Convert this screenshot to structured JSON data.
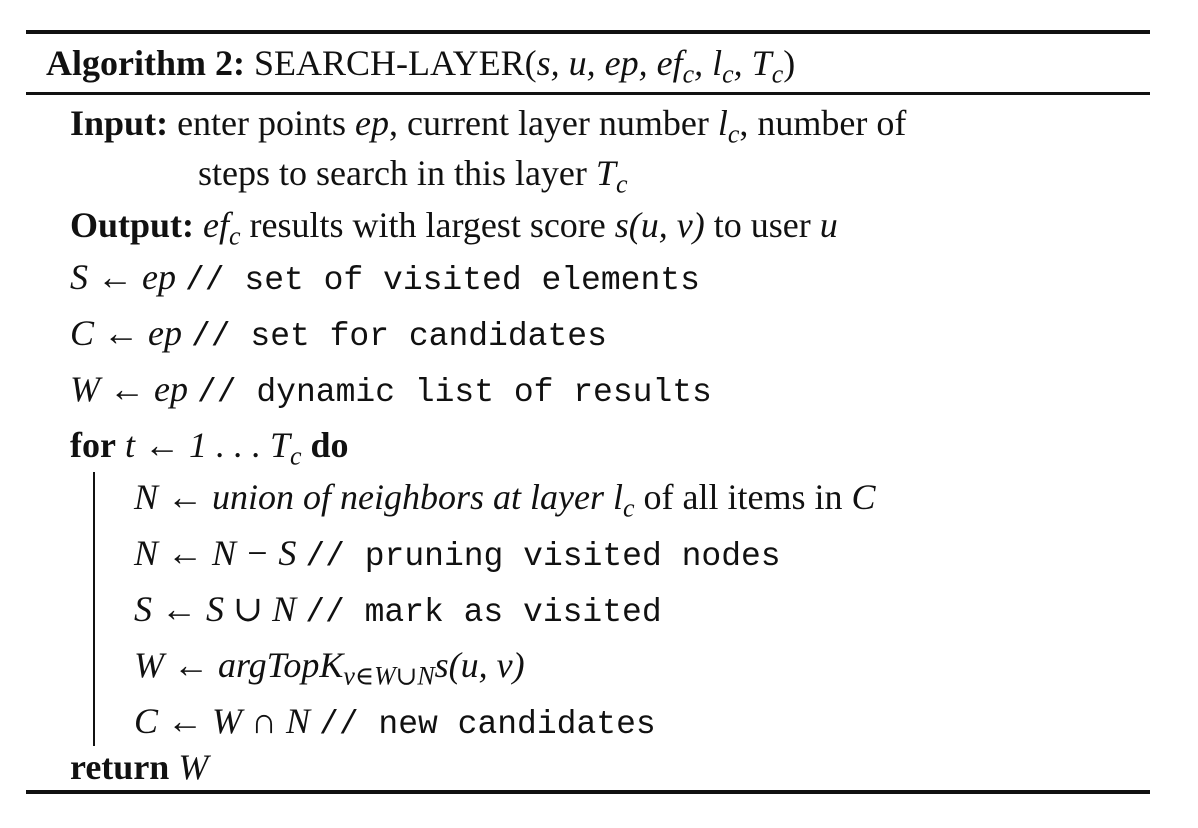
{
  "title": {
    "label": "Algorithm 2:",
    "name": "SEARCH-LAYER(",
    "args": "s, u, ep, ef",
    "args_sub1": "c",
    "args_mid": ", l",
    "args_sub2": "c",
    "args_mid2": ", T",
    "args_sub3": "c",
    "close": ")"
  },
  "input": {
    "label": "Input:",
    "text1": "enter points",
    "var1": "ep",
    "text2": ", current layer number",
    "var2": "l",
    "var2_sub": "c",
    "text3": ", number of",
    "cont": "steps to search in this layer",
    "var3": "T",
    "var3_sub": "c"
  },
  "output": {
    "label": "Output:",
    "var1": "ef",
    "var1_sub": "c",
    "text1": "results with largest score",
    "expr": "s(u, v)",
    "text2": "to user",
    "var2": "u"
  },
  "lines": {
    "l1_math": "S ← ep",
    "l1_comment": "// set of visited elements",
    "l2_math": "C ← ep",
    "l2_comment": "// set for candidates",
    "l3_math": "W ← ep",
    "l3_comment": "// dynamic list of results",
    "for_kw": "for",
    "for_expr": "t ← 1 . . . T",
    "for_sub": "c",
    "do_kw": "do",
    "b1_text": "N ← union of neighbors at layer",
    "b1_var": "l",
    "b1_sub": "c",
    "b1_text2": "of all items in",
    "b1_var2": "C",
    "b2_math": "N ← N − S",
    "b2_comment": "// pruning visited nodes",
    "b3_math": "S ← S ∪ N",
    "b3_comment": "// mark as visited",
    "b4_math": "W ← argTopK",
    "b4_sub": "v∈W∪N",
    "b4_tail": "s(u, v)",
    "b5_math": "C ← W ∩ N",
    "b5_comment": "// new candidates",
    "ret_kw": "return",
    "ret_var": "W"
  }
}
